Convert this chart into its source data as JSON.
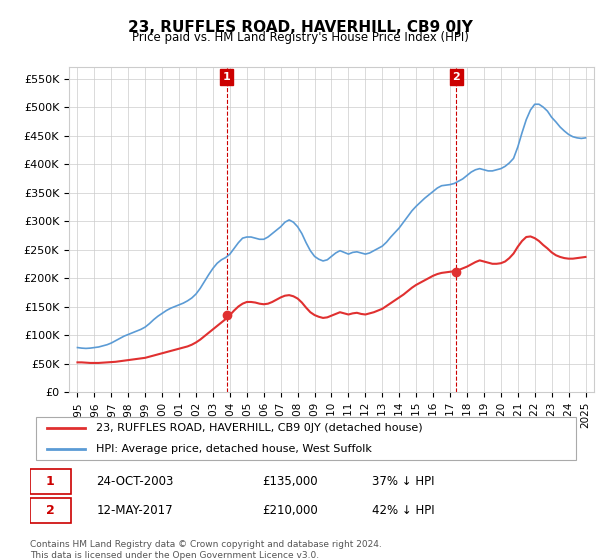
{
  "title": "23, RUFFLES ROAD, HAVERHILL, CB9 0JY",
  "subtitle": "Price paid vs. HM Land Registry's House Price Index (HPI)",
  "ylabel_ticks": [
    "£0",
    "£50K",
    "£100K",
    "£150K",
    "£200K",
    "£250K",
    "£300K",
    "£350K",
    "£400K",
    "£450K",
    "£500K",
    "£550K"
  ],
  "ytick_values": [
    0,
    50000,
    100000,
    150000,
    200000,
    250000,
    300000,
    350000,
    400000,
    450000,
    500000,
    550000
  ],
  "ylim": [
    0,
    570000
  ],
  "xlim_start": 1994.5,
  "xlim_end": 2025.5,
  "xtick_years": [
    1995,
    1996,
    1997,
    1998,
    1999,
    2000,
    2001,
    2002,
    2003,
    2004,
    2005,
    2006,
    2007,
    2008,
    2009,
    2010,
    2011,
    2012,
    2013,
    2014,
    2015,
    2016,
    2017,
    2018,
    2019,
    2020,
    2021,
    2022,
    2023,
    2024,
    2025
  ],
  "hpi_color": "#5b9bd5",
  "price_color": "#e03030",
  "vline_color": "#cc0000",
  "annotation_box_color": "#cc0000",
  "sale1_x": 2003.82,
  "sale1_y": 135000,
  "sale1_label": "1",
  "sale1_price": "£135,000",
  "sale1_date": "24-OCT-2003",
  "sale1_hpi": "37% ↓ HPI",
  "sale2_x": 2017.37,
  "sale2_y": 210000,
  "sale2_label": "2",
  "sale2_price": "£210,000",
  "sale2_date": "12-MAY-2017",
  "sale2_hpi": "42% ↓ HPI",
  "legend_label_red": "23, RUFFLES ROAD, HAVERHILL, CB9 0JY (detached house)",
  "legend_label_blue": "HPI: Average price, detached house, West Suffolk",
  "footer": "Contains HM Land Registry data © Crown copyright and database right 2024.\nThis data is licensed under the Open Government Licence v3.0.",
  "hpi_data_x": [
    1995.0,
    1995.25,
    1995.5,
    1995.75,
    1996.0,
    1996.25,
    1996.5,
    1996.75,
    1997.0,
    1997.25,
    1997.5,
    1997.75,
    1998.0,
    1998.25,
    1998.5,
    1998.75,
    1999.0,
    1999.25,
    1999.5,
    1999.75,
    2000.0,
    2000.25,
    2000.5,
    2000.75,
    2001.0,
    2001.25,
    2001.5,
    2001.75,
    2002.0,
    2002.25,
    2002.5,
    2002.75,
    2003.0,
    2003.25,
    2003.5,
    2003.75,
    2004.0,
    2004.25,
    2004.5,
    2004.75,
    2005.0,
    2005.25,
    2005.5,
    2005.75,
    2006.0,
    2006.25,
    2006.5,
    2006.75,
    2007.0,
    2007.25,
    2007.5,
    2007.75,
    2008.0,
    2008.25,
    2008.5,
    2008.75,
    2009.0,
    2009.25,
    2009.5,
    2009.75,
    2010.0,
    2010.25,
    2010.5,
    2010.75,
    2011.0,
    2011.25,
    2011.5,
    2011.75,
    2012.0,
    2012.25,
    2012.5,
    2012.75,
    2013.0,
    2013.25,
    2013.5,
    2013.75,
    2014.0,
    2014.25,
    2014.5,
    2014.75,
    2015.0,
    2015.25,
    2015.5,
    2015.75,
    2016.0,
    2016.25,
    2016.5,
    2016.75,
    2017.0,
    2017.25,
    2017.5,
    2017.75,
    2018.0,
    2018.25,
    2018.5,
    2018.75,
    2019.0,
    2019.25,
    2019.5,
    2019.75,
    2020.0,
    2020.25,
    2020.5,
    2020.75,
    2021.0,
    2021.25,
    2021.5,
    2021.75,
    2022.0,
    2022.25,
    2022.5,
    2022.75,
    2023.0,
    2023.25,
    2023.5,
    2023.75,
    2024.0,
    2024.25,
    2024.5,
    2024.75,
    2025.0
  ],
  "hpi_data_y": [
    78000,
    77000,
    76500,
    77000,
    78000,
    79000,
    81000,
    83000,
    86000,
    90000,
    94000,
    98000,
    101000,
    104000,
    107000,
    110000,
    114000,
    120000,
    127000,
    133000,
    138000,
    143000,
    147000,
    150000,
    153000,
    156000,
    160000,
    165000,
    172000,
    182000,
    194000,
    206000,
    217000,
    226000,
    232000,
    236000,
    242000,
    252000,
    262000,
    270000,
    272000,
    272000,
    270000,
    268000,
    268000,
    272000,
    278000,
    284000,
    290000,
    298000,
    302000,
    298000,
    290000,
    278000,
    262000,
    248000,
    238000,
    233000,
    230000,
    232000,
    238000,
    244000,
    248000,
    245000,
    242000,
    245000,
    246000,
    244000,
    242000,
    244000,
    248000,
    252000,
    256000,
    263000,
    272000,
    280000,
    288000,
    298000,
    308000,
    318000,
    326000,
    333000,
    340000,
    346000,
    352000,
    358000,
    362000,
    363000,
    364000,
    366000,
    370000,
    374000,
    380000,
    386000,
    390000,
    392000,
    390000,
    388000,
    388000,
    390000,
    392000,
    396000,
    402000,
    410000,
    430000,
    455000,
    478000,
    495000,
    505000,
    505000,
    500000,
    493000,
    482000,
    474000,
    465000,
    458000,
    452000,
    448000,
    446000,
    445000,
    446000
  ],
  "price_data_x": [
    1995.0,
    1995.25,
    1995.5,
    1995.75,
    1996.0,
    1996.25,
    1996.5,
    1996.75,
    1997.0,
    1997.25,
    1997.5,
    1997.75,
    1998.0,
    1998.25,
    1998.5,
    1998.75,
    1999.0,
    1999.25,
    1999.5,
    1999.75,
    2000.0,
    2000.25,
    2000.5,
    2000.75,
    2001.0,
    2001.25,
    2001.5,
    2001.75,
    2002.0,
    2002.25,
    2002.5,
    2002.75,
    2003.0,
    2003.25,
    2003.5,
    2003.75,
    2004.0,
    2004.25,
    2004.5,
    2004.75,
    2005.0,
    2005.25,
    2005.5,
    2005.75,
    2006.0,
    2006.25,
    2006.5,
    2006.75,
    2007.0,
    2007.25,
    2007.5,
    2007.75,
    2008.0,
    2008.25,
    2008.5,
    2008.75,
    2009.0,
    2009.25,
    2009.5,
    2009.75,
    2010.0,
    2010.25,
    2010.5,
    2010.75,
    2011.0,
    2011.25,
    2011.5,
    2011.75,
    2012.0,
    2012.25,
    2012.5,
    2012.75,
    2013.0,
    2013.25,
    2013.5,
    2013.75,
    2014.0,
    2014.25,
    2014.5,
    2014.75,
    2015.0,
    2015.25,
    2015.5,
    2015.75,
    2016.0,
    2016.25,
    2016.5,
    2016.75,
    2017.0,
    2017.25,
    2017.5,
    2017.75,
    2018.0,
    2018.25,
    2018.5,
    2018.75,
    2019.0,
    2019.25,
    2019.5,
    2019.75,
    2020.0,
    2020.25,
    2020.5,
    2020.75,
    2021.0,
    2021.25,
    2021.5,
    2021.75,
    2022.0,
    2022.25,
    2022.5,
    2022.75,
    2023.0,
    2023.25,
    2023.5,
    2023.75,
    2024.0,
    2024.25,
    2024.5,
    2024.75,
    2025.0
  ],
  "price_data_y": [
    52000,
    52000,
    51500,
    51000,
    51000,
    51000,
    51500,
    52000,
    52500,
    53000,
    54000,
    55000,
    56000,
    57000,
    58000,
    59000,
    60000,
    62000,
    64000,
    66000,
    68000,
    70000,
    72000,
    74000,
    76000,
    78000,
    80000,
    83000,
    87000,
    92000,
    98000,
    104000,
    110000,
    116000,
    122000,
    128000,
    135000,
    143000,
    150000,
    155000,
    158000,
    158000,
    157000,
    155000,
    154000,
    155000,
    158000,
    162000,
    166000,
    169000,
    170000,
    168000,
    164000,
    157000,
    148000,
    140000,
    135000,
    132000,
    130000,
    131000,
    134000,
    137000,
    140000,
    138000,
    136000,
    138000,
    139000,
    137000,
    136000,
    138000,
    140000,
    143000,
    146000,
    151000,
    156000,
    161000,
    166000,
    171000,
    177000,
    183000,
    188000,
    192000,
    196000,
    200000,
    204000,
    207000,
    209000,
    210000,
    211000,
    212000,
    214000,
    217000,
    220000,
    224000,
    228000,
    231000,
    229000,
    227000,
    225000,
    225000,
    226000,
    229000,
    235000,
    243000,
    255000,
    265000,
    272000,
    273000,
    270000,
    265000,
    258000,
    252000,
    245000,
    240000,
    237000,
    235000,
    234000,
    234000,
    235000,
    236000,
    237000
  ]
}
